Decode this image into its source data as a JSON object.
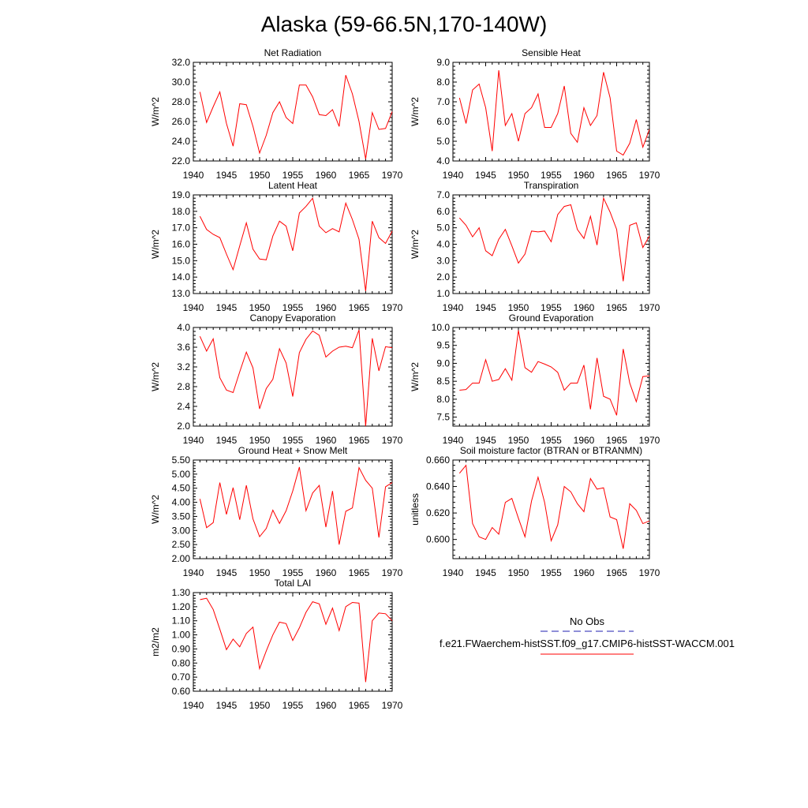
{
  "title": "Alaska (59-66.5N,170-140W)",
  "chart_data": [
    {
      "type": "line",
      "title": "Net Radiation",
      "ylabel": "W/m^2",
      "xlim": [
        1940,
        1970
      ],
      "ylim": [
        22.0,
        32.0
      ],
      "xticks": [
        "1940",
        "1945",
        "1950",
        "1955",
        "1960",
        "1965",
        "1970"
      ],
      "yticks": [
        "22.0",
        "24.0",
        "26.0",
        "28.0",
        "30.0",
        "32.0"
      ],
      "series": [
        {
          "x": [
            1941,
            1942,
            1943,
            1944,
            1945,
            1946,
            1947,
            1948,
            1949,
            1950,
            1951,
            1952,
            1953,
            1954,
            1955,
            1956,
            1957,
            1958,
            1959,
            1960,
            1961,
            1962,
            1963,
            1964,
            1965,
            1966,
            1967,
            1968,
            1969,
            1970
          ],
          "y": [
            29.0,
            25.9,
            27.5,
            29.0,
            25.8,
            23.5,
            27.8,
            27.7,
            25.5,
            22.8,
            24.6,
            26.9,
            28.0,
            26.4,
            25.8,
            29.7,
            29.7,
            28.5,
            26.7,
            26.6,
            27.2,
            25.5,
            30.7,
            28.8,
            26.0,
            22.2,
            26.9,
            25.2,
            25.3,
            27.0
          ]
        }
      ]
    },
    {
      "type": "line",
      "title": "Sensible Heat",
      "ylabel": "W/m^2",
      "xlim": [
        1940,
        1970
      ],
      "ylim": [
        4.0,
        9.0
      ],
      "xticks": [
        "1940",
        "1945",
        "1950",
        "1955",
        "1960",
        "1965",
        "1970"
      ],
      "yticks": [
        "4.0",
        "5.0",
        "6.0",
        "7.0",
        "8.0",
        "9.0"
      ],
      "series": [
        {
          "x": [
            1941,
            1942,
            1943,
            1944,
            1945,
            1946,
            1947,
            1948,
            1949,
            1950,
            1951,
            1952,
            1953,
            1954,
            1955,
            1956,
            1957,
            1958,
            1959,
            1960,
            1961,
            1962,
            1963,
            1964,
            1965,
            1966,
            1967,
            1968,
            1969,
            1970
          ],
          "y": [
            7.2,
            5.9,
            7.6,
            7.9,
            6.7,
            4.5,
            8.6,
            5.8,
            6.4,
            5.0,
            6.4,
            6.7,
            7.4,
            5.7,
            5.7,
            6.4,
            7.8,
            5.4,
            4.95,
            6.7,
            5.8,
            6.3,
            8.5,
            7.2,
            4.5,
            4.3,
            4.9,
            6.1,
            4.7,
            5.6
          ]
        }
      ]
    },
    {
      "type": "line",
      "title": "Latent Heat",
      "ylabel": "W/m^2",
      "xlim": [
        1940,
        1970
      ],
      "ylim": [
        13.0,
        19.0
      ],
      "xticks": [
        "1940",
        "1945",
        "1950",
        "1955",
        "1960",
        "1965",
        "1970"
      ],
      "yticks": [
        "13.0",
        "14.0",
        "15.0",
        "16.0",
        "17.0",
        "18.0",
        "19.0"
      ],
      "series": [
        {
          "x": [
            1941,
            1942,
            1943,
            1944,
            1945,
            1946,
            1947,
            1948,
            1949,
            1950,
            1951,
            1952,
            1953,
            1954,
            1955,
            1956,
            1957,
            1958,
            1959,
            1960,
            1961,
            1962,
            1963,
            1964,
            1965,
            1966,
            1967,
            1968,
            1969,
            1970
          ],
          "y": [
            17.7,
            16.9,
            16.6,
            16.4,
            15.4,
            14.45,
            15.9,
            17.3,
            15.7,
            15.1,
            15.05,
            16.5,
            17.4,
            17.1,
            15.6,
            17.9,
            18.3,
            18.8,
            17.1,
            16.7,
            16.95,
            16.75,
            18.5,
            17.5,
            16.3,
            13.15,
            17.4,
            16.4,
            16.05,
            16.8
          ]
        }
      ]
    },
    {
      "type": "line",
      "title": "Transpiration",
      "ylabel": "W/m^2",
      "xlim": [
        1940,
        1970
      ],
      "ylim": [
        1.0,
        7.0
      ],
      "xticks": [
        "1940",
        "1945",
        "1950",
        "1955",
        "1960",
        "1965",
        "1970"
      ],
      "yticks": [
        "1.0",
        "2.0",
        "3.0",
        "4.0",
        "5.0",
        "6.0",
        "7.0"
      ],
      "series": [
        {
          "x": [
            1941,
            1942,
            1943,
            1944,
            1945,
            1946,
            1947,
            1948,
            1949,
            1950,
            1951,
            1952,
            1953,
            1954,
            1955,
            1956,
            1957,
            1958,
            1959,
            1960,
            1961,
            1962,
            1963,
            1964,
            1965,
            1966,
            1967,
            1968,
            1969,
            1970
          ],
          "y": [
            5.6,
            5.15,
            4.45,
            5.0,
            3.6,
            3.3,
            4.3,
            4.9,
            3.9,
            2.85,
            3.4,
            4.8,
            4.75,
            4.8,
            4.15,
            5.8,
            6.3,
            6.4,
            4.9,
            4.35,
            5.7,
            3.95,
            6.8,
            5.95,
            4.9,
            1.75,
            5.15,
            5.3,
            3.8,
            4.5
          ]
        }
      ]
    },
    {
      "type": "line",
      "title": "Canopy Evaporation",
      "ylabel": "W/m^2",
      "xlim": [
        1940,
        1970
      ],
      "ylim": [
        2.0,
        4.0
      ],
      "xticks": [
        "1940",
        "1945",
        "1950",
        "1955",
        "1960",
        "1965",
        "1970"
      ],
      "yticks": [
        "2.0",
        "2.4",
        "2.8",
        "3.2",
        "3.6",
        "4.0"
      ],
      "series": [
        {
          "x": [
            1941,
            1942,
            1943,
            1944,
            1945,
            1946,
            1947,
            1948,
            1949,
            1950,
            1951,
            1952,
            1953,
            1954,
            1955,
            1956,
            1957,
            1958,
            1959,
            1960,
            1961,
            1962,
            1963,
            1964,
            1965,
            1966,
            1967,
            1968,
            1969,
            1970
          ],
          "y": [
            3.82,
            3.52,
            3.77,
            2.98,
            2.73,
            2.68,
            3.1,
            3.5,
            3.18,
            2.35,
            2.76,
            2.95,
            3.57,
            3.28,
            2.6,
            3.49,
            3.76,
            3.93,
            3.84,
            3.4,
            3.52,
            3.6,
            3.62,
            3.59,
            3.95,
            2.0,
            3.78,
            3.12,
            3.61,
            3.59
          ]
        }
      ]
    },
    {
      "type": "line",
      "title": "Ground Evaporation",
      "ylabel": "W/m^2",
      "xlim": [
        1940,
        1970
      ],
      "ylim": [
        7.25,
        10.0
      ],
      "xticks": [
        "1940",
        "1945",
        "1950",
        "1955",
        "1960",
        "1965",
        "1970"
      ],
      "yticks": [
        "7.5",
        "8.0",
        "8.5",
        "9.0",
        "9.5",
        "10.0"
      ],
      "series": [
        {
          "x": [
            1941,
            1942,
            1943,
            1944,
            1945,
            1946,
            1947,
            1948,
            1949,
            1950,
            1951,
            1952,
            1953,
            1954,
            1955,
            1956,
            1957,
            1958,
            1959,
            1960,
            1961,
            1962,
            1963,
            1964,
            1965,
            1966,
            1967,
            1968,
            1969,
            1970
          ],
          "y": [
            8.25,
            8.27,
            8.45,
            8.45,
            9.1,
            8.5,
            8.55,
            8.85,
            8.53,
            9.92,
            8.88,
            8.75,
            9.05,
            8.98,
            8.9,
            8.75,
            8.25,
            8.45,
            8.45,
            8.95,
            7.72,
            9.15,
            8.08,
            8.0,
            7.55,
            9.4,
            8.45,
            7.93,
            8.63,
            8.65
          ]
        }
      ]
    },
    {
      "type": "line",
      "title": "Ground Heat + Snow Melt",
      "ylabel": "W/m^2",
      "xlim": [
        1940,
        1970
      ],
      "ylim": [
        2.0,
        5.5
      ],
      "xticks": [
        "1940",
        "1945",
        "1950",
        "1955",
        "1960",
        "1965",
        "1970"
      ],
      "yticks": [
        "2.00",
        "2.50",
        "3.00",
        "3.50",
        "4.00",
        "4.50",
        "5.00",
        "5.50"
      ],
      "series": [
        {
          "x": [
            1941,
            1942,
            1943,
            1944,
            1945,
            1946,
            1947,
            1948,
            1949,
            1950,
            1951,
            1952,
            1953,
            1954,
            1955,
            1956,
            1957,
            1958,
            1959,
            1960,
            1961,
            1962,
            1963,
            1964,
            1965,
            1966,
            1967,
            1968,
            1969,
            1970
          ],
          "y": [
            4.12,
            3.1,
            3.28,
            4.7,
            3.57,
            4.52,
            3.38,
            4.6,
            3.41,
            2.78,
            3.07,
            3.72,
            3.25,
            3.7,
            4.4,
            5.25,
            3.7,
            4.33,
            4.6,
            3.12,
            4.4,
            2.5,
            3.68,
            3.8,
            5.23,
            4.78,
            4.5,
            2.75,
            4.55,
            4.7
          ]
        }
      ]
    },
    {
      "type": "line",
      "title": "Soil moisture factor (BTRAN or BTRANMN)",
      "ylabel": "unitless",
      "xlim": [
        1940,
        1970
      ],
      "ylim": [
        0.5855,
        0.66
      ],
      "xticks": [
        "1940",
        "1945",
        "1950",
        "1955",
        "1960",
        "1965",
        "1970"
      ],
      "yticks": [
        "0.600",
        "0.620",
        "0.640",
        "0.660"
      ],
      "series": [
        {
          "x": [
            1941,
            1942,
            1943,
            1944,
            1945,
            1946,
            1947,
            1948,
            1949,
            1950,
            1951,
            1952,
            1953,
            1954,
            1955,
            1956,
            1957,
            1958,
            1959,
            1960,
            1961,
            1962,
            1963,
            1964,
            1965,
            1966,
            1967,
            1968,
            1969,
            1970
          ],
          "y": [
            0.65,
            0.656,
            0.612,
            0.602,
            0.6,
            0.609,
            0.604,
            0.628,
            0.631,
            0.616,
            0.602,
            0.629,
            0.647,
            0.628,
            0.599,
            0.611,
            0.64,
            0.636,
            0.627,
            0.621,
            0.646,
            0.638,
            0.639,
            0.617,
            0.615,
            0.593,
            0.627,
            0.622,
            0.612,
            0.614
          ]
        }
      ]
    },
    {
      "type": "line",
      "title": "Total LAI",
      "ylabel": "m2/m2",
      "xlim": [
        1940,
        1970
      ],
      "ylim": [
        0.6,
        1.3
      ],
      "xticks": [
        "1940",
        "1945",
        "1950",
        "1955",
        "1960",
        "1965",
        "1970"
      ],
      "yticks": [
        "0.60",
        "0.70",
        "0.80",
        "0.90",
        "1.00",
        "1.10",
        "1.20",
        "1.30"
      ],
      "series": [
        {
          "x": [
            1941,
            1942,
            1943,
            1944,
            1945,
            1946,
            1947,
            1948,
            1949,
            1950,
            1951,
            1952,
            1953,
            1954,
            1955,
            1956,
            1957,
            1958,
            1959,
            1960,
            1961,
            1962,
            1963,
            1964,
            1965,
            1966,
            1967,
            1968,
            1969,
            1970
          ],
          "y": [
            1.25,
            1.26,
            1.18,
            1.04,
            0.895,
            0.97,
            0.915,
            1.01,
            1.055,
            0.76,
            0.885,
            1.0,
            1.09,
            1.08,
            0.96,
            1.05,
            1.16,
            1.235,
            1.22,
            1.075,
            1.19,
            1.03,
            1.2,
            1.23,
            1.225,
            0.665,
            1.1,
            1.155,
            1.15,
            1.1
          ]
        }
      ]
    }
  ],
  "legend": {
    "items": [
      {
        "label": "No Obs",
        "color": "#1f1fb0",
        "dashed": true
      },
      {
        "label": "f.e21.FWaerchem-histSST.f09_g17.CMIP6-histSST-WACCM.001",
        "color": "#ff0000",
        "dashed": false
      }
    ]
  },
  "line_color": "#ff0000"
}
